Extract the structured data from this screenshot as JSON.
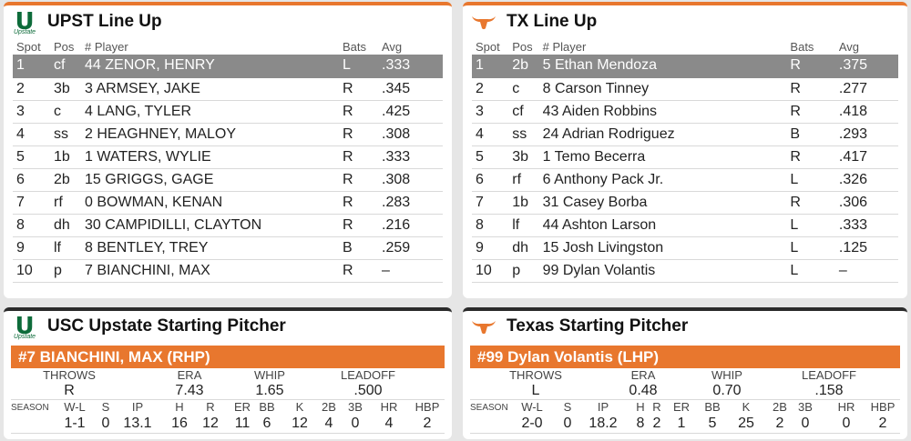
{
  "upst_lineup": {
    "title": "UPST Line Up",
    "logo_text": "Upstate",
    "headers": [
      "Spot",
      "Pos",
      "# Player",
      "Bats",
      "Avg"
    ],
    "rows": [
      {
        "spot": "1",
        "pos": "cf",
        "player": "44 ZENOR, HENRY",
        "bats": "L",
        "avg": ".333"
      },
      {
        "spot": "2",
        "pos": "3b",
        "player": "3 ARMSEY, JAKE",
        "bats": "R",
        "avg": ".345"
      },
      {
        "spot": "3",
        "pos": "c",
        "player": "4 LANG, TYLER",
        "bats": "R",
        "avg": ".425"
      },
      {
        "spot": "4",
        "pos": "ss",
        "player": "2 HEAGHNEY, MALOY",
        "bats": "R",
        "avg": ".308"
      },
      {
        "spot": "5",
        "pos": "1b",
        "player": "1 WATERS, WYLIE",
        "bats": "R",
        "avg": ".333"
      },
      {
        "spot": "6",
        "pos": "2b",
        "player": "15 GRIGGS, GAGE",
        "bats": "R",
        "avg": ".308"
      },
      {
        "spot": "7",
        "pos": "rf",
        "player": "0 BOWMAN, KENAN",
        "bats": "R",
        "avg": ".283"
      },
      {
        "spot": "8",
        "pos": "dh",
        "player": "30 CAMPIDILLI, CLAYTON",
        "bats": "R",
        "avg": ".216"
      },
      {
        "spot": "9",
        "pos": "lf",
        "player": "8 BENTLEY, TREY",
        "bats": "B",
        "avg": ".259"
      },
      {
        "spot": "10",
        "pos": "p",
        "player": "7 BIANCHINI, MAX",
        "bats": "R",
        "avg": "–"
      }
    ]
  },
  "tx_lineup": {
    "title": "TX Line Up",
    "headers": [
      "Spot",
      "Pos",
      "# Player",
      "Bats",
      "Avg"
    ],
    "rows": [
      {
        "spot": "1",
        "pos": "2b",
        "player": "5 Ethan Mendoza",
        "bats": "R",
        "avg": ".375"
      },
      {
        "spot": "2",
        "pos": "c",
        "player": "8 Carson Tinney",
        "bats": "R",
        "avg": ".277"
      },
      {
        "spot": "3",
        "pos": "cf",
        "player": "43 Aiden Robbins",
        "bats": "R",
        "avg": ".418"
      },
      {
        "spot": "4",
        "pos": "ss",
        "player": "24 Adrian Rodriguez",
        "bats": "B",
        "avg": ".293"
      },
      {
        "spot": "5",
        "pos": "3b",
        "player": "1 Temo Becerra",
        "bats": "R",
        "avg": ".417"
      },
      {
        "spot": "6",
        "pos": "rf",
        "player": "6 Anthony Pack Jr.",
        "bats": "L",
        "avg": ".326"
      },
      {
        "spot": "7",
        "pos": "1b",
        "player": "31 Casey Borba",
        "bats": "R",
        "avg": ".306"
      },
      {
        "spot": "8",
        "pos": "lf",
        "player": "44 Ashton Larson",
        "bats": "L",
        "avg": ".333"
      },
      {
        "spot": "9",
        "pos": "dh",
        "player": "15 Josh Livingston",
        "bats": "L",
        "avg": ".125"
      },
      {
        "spot": "10",
        "pos": "p",
        "player": "99 Dylan Volantis",
        "bats": "L",
        "avg": "–"
      }
    ]
  },
  "upst_pitcher": {
    "title": "USC Upstate Starting Pitcher",
    "logo_text": "Upstate",
    "name": "#7 BIANCHINI, MAX (RHP)",
    "top_labels": [
      "THROWS",
      "ERA",
      "WHIP",
      "LEADOFF"
    ],
    "top_values": [
      "R",
      "7.43",
      "1.65",
      ".500"
    ],
    "season_label": "SEASON",
    "season_labels": [
      "W-L",
      "S",
      "IP",
      "H",
      "R",
      "ER",
      "BB",
      "K",
      "2B",
      "3B",
      "HR",
      "HBP"
    ],
    "season_values": [
      "1-1",
      "0",
      "13.1",
      "16",
      "12",
      "11",
      "6",
      "12",
      "4",
      "0",
      "4",
      "2"
    ]
  },
  "tx_pitcher": {
    "title": "Texas Starting Pitcher",
    "name": "#99 Dylan Volantis (LHP)",
    "top_labels": [
      "THROWS",
      "ERA",
      "WHIP",
      "LEADOFF"
    ],
    "top_values": [
      "L",
      "0.48",
      "0.70",
      ".158"
    ],
    "season_label": "SEASON",
    "season_labels": [
      "W-L",
      "S",
      "IP",
      "H",
      "R",
      "ER",
      "BB",
      "K",
      "2B",
      "3B",
      "HR",
      "HBP"
    ],
    "season_values": [
      "2-0",
      "0",
      "18.2",
      "8",
      "2",
      "1",
      "5",
      "25",
      "2",
      "0",
      "0",
      "2"
    ]
  },
  "colors": {
    "accent_orange": "#e8772e",
    "upstate_green": "#0d6b3a",
    "selected_row": "#8a8a8a"
  }
}
